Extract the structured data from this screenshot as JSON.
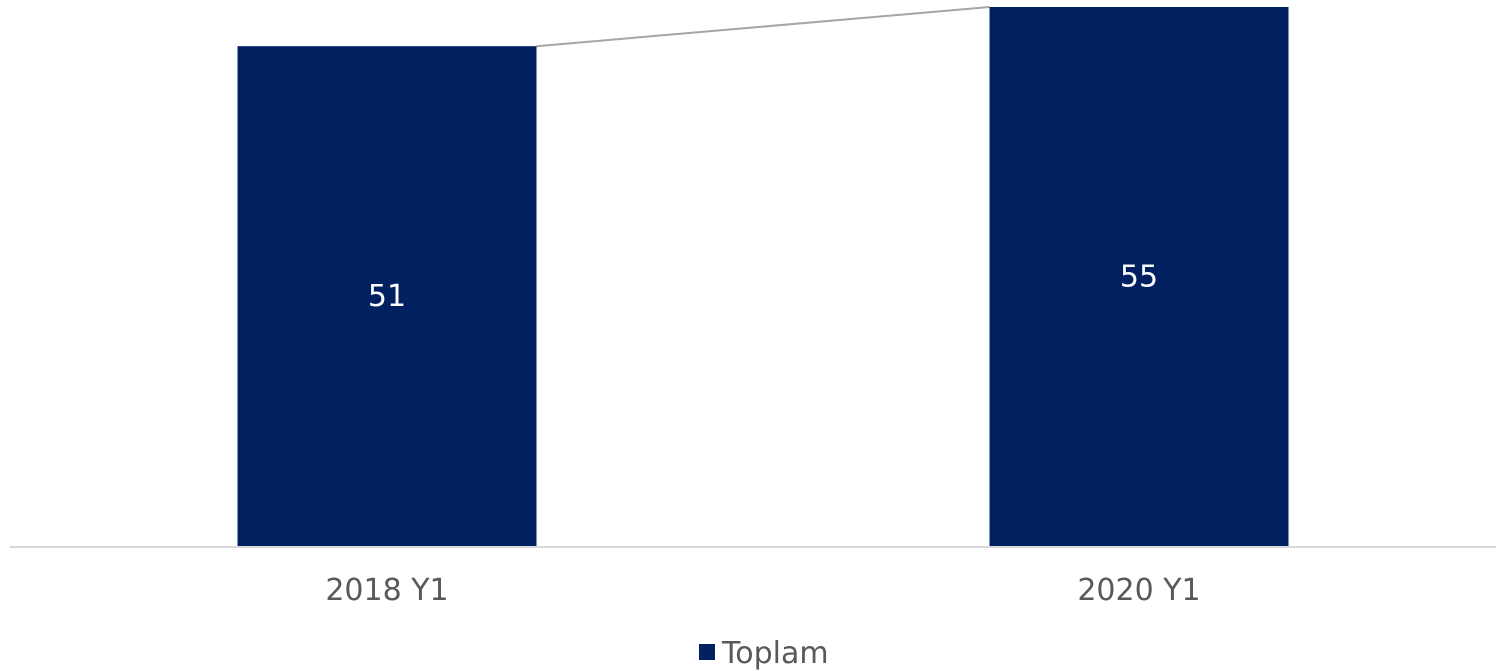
{
  "chart_data": {
    "type": "bar",
    "categories": [
      "2018 Y1",
      "2020 Y1"
    ],
    "series": [
      {
        "name": "Toplam",
        "values": [
          51,
          55
        ],
        "color": "#002060"
      }
    ],
    "data_labels": [
      "51",
      "55"
    ],
    "legend": {
      "position": "bottom",
      "entries": [
        "Toplam"
      ]
    },
    "connector_line": true,
    "connector_color": "#a6a6a6",
    "axis_line_color": "#d9d9d9",
    "grid": false,
    "title": "",
    "xlabel": "",
    "ylabel": ""
  }
}
